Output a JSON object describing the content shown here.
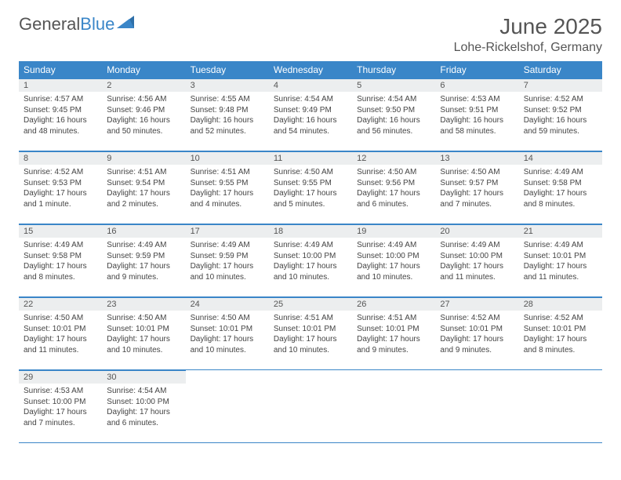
{
  "logo": {
    "text1": "General",
    "text2": "Blue"
  },
  "header": {
    "month_title": "June 2025",
    "location": "Lohe-Rickelshof, Germany"
  },
  "colors": {
    "brand_blue": "#3a86c8",
    "header_text": "#555555",
    "daynum_bg": "#eceeef",
    "body_text": "#444444",
    "white": "#ffffff"
  },
  "weekdays": [
    "Sunday",
    "Monday",
    "Tuesday",
    "Wednesday",
    "Thursday",
    "Friday",
    "Saturday"
  ],
  "days": [
    {
      "n": "1",
      "sunrise": "Sunrise: 4:57 AM",
      "sunset": "Sunset: 9:45 PM",
      "day1": "Daylight: 16 hours",
      "day2": "and 48 minutes."
    },
    {
      "n": "2",
      "sunrise": "Sunrise: 4:56 AM",
      "sunset": "Sunset: 9:46 PM",
      "day1": "Daylight: 16 hours",
      "day2": "and 50 minutes."
    },
    {
      "n": "3",
      "sunrise": "Sunrise: 4:55 AM",
      "sunset": "Sunset: 9:48 PM",
      "day1": "Daylight: 16 hours",
      "day2": "and 52 minutes."
    },
    {
      "n": "4",
      "sunrise": "Sunrise: 4:54 AM",
      "sunset": "Sunset: 9:49 PM",
      "day1": "Daylight: 16 hours",
      "day2": "and 54 minutes."
    },
    {
      "n": "5",
      "sunrise": "Sunrise: 4:54 AM",
      "sunset": "Sunset: 9:50 PM",
      "day1": "Daylight: 16 hours",
      "day2": "and 56 minutes."
    },
    {
      "n": "6",
      "sunrise": "Sunrise: 4:53 AM",
      "sunset": "Sunset: 9:51 PM",
      "day1": "Daylight: 16 hours",
      "day2": "and 58 minutes."
    },
    {
      "n": "7",
      "sunrise": "Sunrise: 4:52 AM",
      "sunset": "Sunset: 9:52 PM",
      "day1": "Daylight: 16 hours",
      "day2": "and 59 minutes."
    },
    {
      "n": "8",
      "sunrise": "Sunrise: 4:52 AM",
      "sunset": "Sunset: 9:53 PM",
      "day1": "Daylight: 17 hours",
      "day2": "and 1 minute."
    },
    {
      "n": "9",
      "sunrise": "Sunrise: 4:51 AM",
      "sunset": "Sunset: 9:54 PM",
      "day1": "Daylight: 17 hours",
      "day2": "and 2 minutes."
    },
    {
      "n": "10",
      "sunrise": "Sunrise: 4:51 AM",
      "sunset": "Sunset: 9:55 PM",
      "day1": "Daylight: 17 hours",
      "day2": "and 4 minutes."
    },
    {
      "n": "11",
      "sunrise": "Sunrise: 4:50 AM",
      "sunset": "Sunset: 9:55 PM",
      "day1": "Daylight: 17 hours",
      "day2": "and 5 minutes."
    },
    {
      "n": "12",
      "sunrise": "Sunrise: 4:50 AM",
      "sunset": "Sunset: 9:56 PM",
      "day1": "Daylight: 17 hours",
      "day2": "and 6 minutes."
    },
    {
      "n": "13",
      "sunrise": "Sunrise: 4:50 AM",
      "sunset": "Sunset: 9:57 PM",
      "day1": "Daylight: 17 hours",
      "day2": "and 7 minutes."
    },
    {
      "n": "14",
      "sunrise": "Sunrise: 4:49 AM",
      "sunset": "Sunset: 9:58 PM",
      "day1": "Daylight: 17 hours",
      "day2": "and 8 minutes."
    },
    {
      "n": "15",
      "sunrise": "Sunrise: 4:49 AM",
      "sunset": "Sunset: 9:58 PM",
      "day1": "Daylight: 17 hours",
      "day2": "and 8 minutes."
    },
    {
      "n": "16",
      "sunrise": "Sunrise: 4:49 AM",
      "sunset": "Sunset: 9:59 PM",
      "day1": "Daylight: 17 hours",
      "day2": "and 9 minutes."
    },
    {
      "n": "17",
      "sunrise": "Sunrise: 4:49 AM",
      "sunset": "Sunset: 9:59 PM",
      "day1": "Daylight: 17 hours",
      "day2": "and 10 minutes."
    },
    {
      "n": "18",
      "sunrise": "Sunrise: 4:49 AM",
      "sunset": "Sunset: 10:00 PM",
      "day1": "Daylight: 17 hours",
      "day2": "and 10 minutes."
    },
    {
      "n": "19",
      "sunrise": "Sunrise: 4:49 AM",
      "sunset": "Sunset: 10:00 PM",
      "day1": "Daylight: 17 hours",
      "day2": "and 10 minutes."
    },
    {
      "n": "20",
      "sunrise": "Sunrise: 4:49 AM",
      "sunset": "Sunset: 10:00 PM",
      "day1": "Daylight: 17 hours",
      "day2": "and 11 minutes."
    },
    {
      "n": "21",
      "sunrise": "Sunrise: 4:49 AM",
      "sunset": "Sunset: 10:01 PM",
      "day1": "Daylight: 17 hours",
      "day2": "and 11 minutes."
    },
    {
      "n": "22",
      "sunrise": "Sunrise: 4:50 AM",
      "sunset": "Sunset: 10:01 PM",
      "day1": "Daylight: 17 hours",
      "day2": "and 11 minutes."
    },
    {
      "n": "23",
      "sunrise": "Sunrise: 4:50 AM",
      "sunset": "Sunset: 10:01 PM",
      "day1": "Daylight: 17 hours",
      "day2": "and 10 minutes."
    },
    {
      "n": "24",
      "sunrise": "Sunrise: 4:50 AM",
      "sunset": "Sunset: 10:01 PM",
      "day1": "Daylight: 17 hours",
      "day2": "and 10 minutes."
    },
    {
      "n": "25",
      "sunrise": "Sunrise: 4:51 AM",
      "sunset": "Sunset: 10:01 PM",
      "day1": "Daylight: 17 hours",
      "day2": "and 10 minutes."
    },
    {
      "n": "26",
      "sunrise": "Sunrise: 4:51 AM",
      "sunset": "Sunset: 10:01 PM",
      "day1": "Daylight: 17 hours",
      "day2": "and 9 minutes."
    },
    {
      "n": "27",
      "sunrise": "Sunrise: 4:52 AM",
      "sunset": "Sunset: 10:01 PM",
      "day1": "Daylight: 17 hours",
      "day2": "and 9 minutes."
    },
    {
      "n": "28",
      "sunrise": "Sunrise: 4:52 AM",
      "sunset": "Sunset: 10:01 PM",
      "day1": "Daylight: 17 hours",
      "day2": "and 8 minutes."
    },
    {
      "n": "29",
      "sunrise": "Sunrise: 4:53 AM",
      "sunset": "Sunset: 10:00 PM",
      "day1": "Daylight: 17 hours",
      "day2": "and 7 minutes."
    },
    {
      "n": "30",
      "sunrise": "Sunrise: 4:54 AM",
      "sunset": "Sunset: 10:00 PM",
      "day1": "Daylight: 17 hours",
      "day2": "and 6 minutes."
    }
  ]
}
